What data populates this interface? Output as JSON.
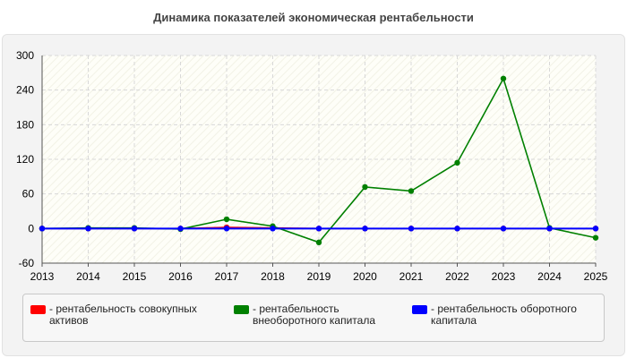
{
  "chart_data": {
    "type": "line",
    "title": "Динамика показателей экономическая рентабельности",
    "x": [
      "2013",
      "2014",
      "2015",
      "2016",
      "2017",
      "2018",
      "2019",
      "2020",
      "2021",
      "2022",
      "2023",
      "2024",
      "2025"
    ],
    "ylim": [
      -60,
      300
    ],
    "yticks": [
      -60,
      0,
      60,
      120,
      180,
      240,
      300
    ],
    "grid": true,
    "legend_position": "bottom",
    "series": [
      {
        "name": "рентабельность совокупных активов",
        "legend_label": "- рентабельность совокупных\nактивов",
        "color": "#ff0000",
        "values": [
          0,
          0,
          0,
          0,
          2,
          1,
          0,
          0,
          0,
          0,
          0,
          0,
          0
        ]
      },
      {
        "name": "рентабельность внеоборотного капитала",
        "legend_label": "- рентабельность\nвнеоборотного капитала",
        "color": "#008000",
        "values": [
          0,
          1,
          1,
          -1,
          16,
          4,
          -24,
          72,
          65,
          114,
          260,
          1,
          -16
        ]
      },
      {
        "name": "рентабельность оборотного капитала",
        "legend_label": "- рентабельность оборотного\nкапитала",
        "color": "#0000ff",
        "values": [
          0,
          0,
          0,
          0,
          0,
          0,
          0,
          0,
          0,
          0,
          0,
          0,
          0
        ]
      }
    ]
  }
}
